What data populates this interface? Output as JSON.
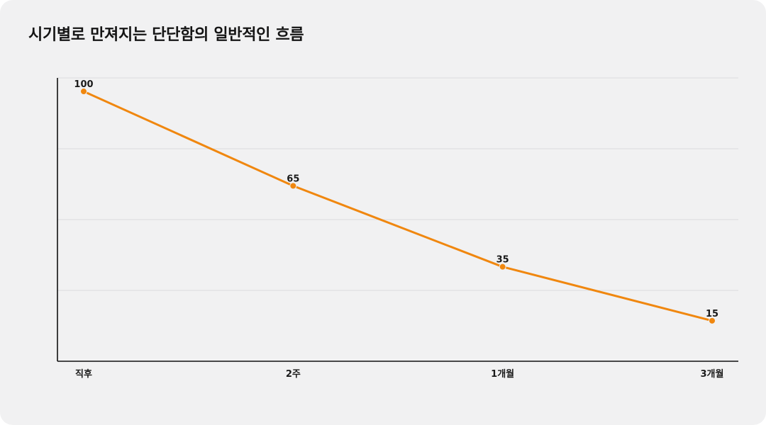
{
  "chart_data": {
    "type": "line",
    "title": "시기별로 만져지는 단단함의 일반적인 흐름",
    "categories": [
      "직후",
      "2주",
      "1개월",
      "3개월"
    ],
    "series": [
      {
        "values": [
          100,
          65,
          35,
          15
        ]
      }
    ],
    "ylim": [
      0,
      105
    ],
    "grid": true,
    "show_data_labels": true,
    "line_color": "#f0870f",
    "grid_color": "#dcdcdf",
    "axis_color": "#111111"
  }
}
